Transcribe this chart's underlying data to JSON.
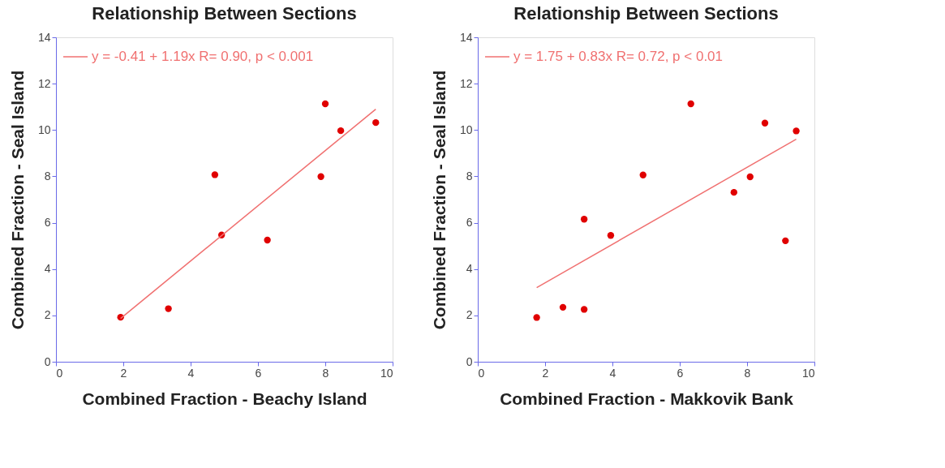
{
  "chart_data": [
    {
      "type": "scatter",
      "title": "Relationship Between Sections",
      "xlabel": "Combined Fraction - Beachy Island",
      "ylabel": "Combined Fraction - Seal Island",
      "xlim": [
        0,
        10
      ],
      "ylim": [
        0,
        14
      ],
      "xticks": [
        0,
        2,
        4,
        6,
        8,
        10
      ],
      "yticks": [
        0,
        2,
        4,
        6,
        8,
        10,
        12,
        14
      ],
      "legend": "top left",
      "series": [
        {
          "marker": "circle",
          "color": "#e00000",
          "x": [
            1.92,
            3.34,
            4.72,
            4.92,
            6.28,
            7.87,
            8.0,
            8.46,
            9.5
          ],
          "values": [
            1.92,
            2.29,
            8.07,
            5.47,
            5.25,
            7.99,
            11.13,
            9.97,
            10.32
          ]
        },
        {
          "type": "line",
          "marker": "none",
          "line_style": "solid",
          "name": "y = -0.41 + 1.19x   R= 0.90, p < 0.001",
          "color": "#f07070",
          "x": [
            1.92,
            9.5
          ],
          "values": [
            1.87,
            10.9
          ]
        }
      ]
    },
    {
      "type": "scatter",
      "title": "Relationship Between Sections",
      "xlabel": "Combined Fraction - Makkovik Bank",
      "ylabel": "Combined Fraction - Seal Island",
      "xlim": [
        0,
        10
      ],
      "ylim": [
        0,
        14
      ],
      "xticks": [
        0,
        2,
        4,
        6,
        8,
        10
      ],
      "yticks": [
        0,
        2,
        4,
        6,
        8,
        10,
        12,
        14
      ],
      "legend": "top left",
      "series": [
        {
          "marker": "circle",
          "color": "#e00000",
          "x": [
            1.75,
            2.53,
            3.16,
            3.16,
            3.95,
            4.91,
            6.33,
            7.61,
            8.09,
            8.53,
            9.14,
            9.46
          ],
          "values": [
            1.91,
            2.35,
            2.26,
            6.15,
            5.45,
            8.06,
            11.13,
            7.31,
            7.98,
            10.3,
            5.22,
            9.96
          ]
        },
        {
          "type": "line",
          "marker": "none",
          "line_style": "solid",
          "name": "y = 1.75 + 0.83x   R= 0.72, p < 0.01",
          "color": "#f07070",
          "x": [
            1.75,
            9.46
          ],
          "values": [
            3.2,
            9.6
          ]
        }
      ]
    }
  ]
}
